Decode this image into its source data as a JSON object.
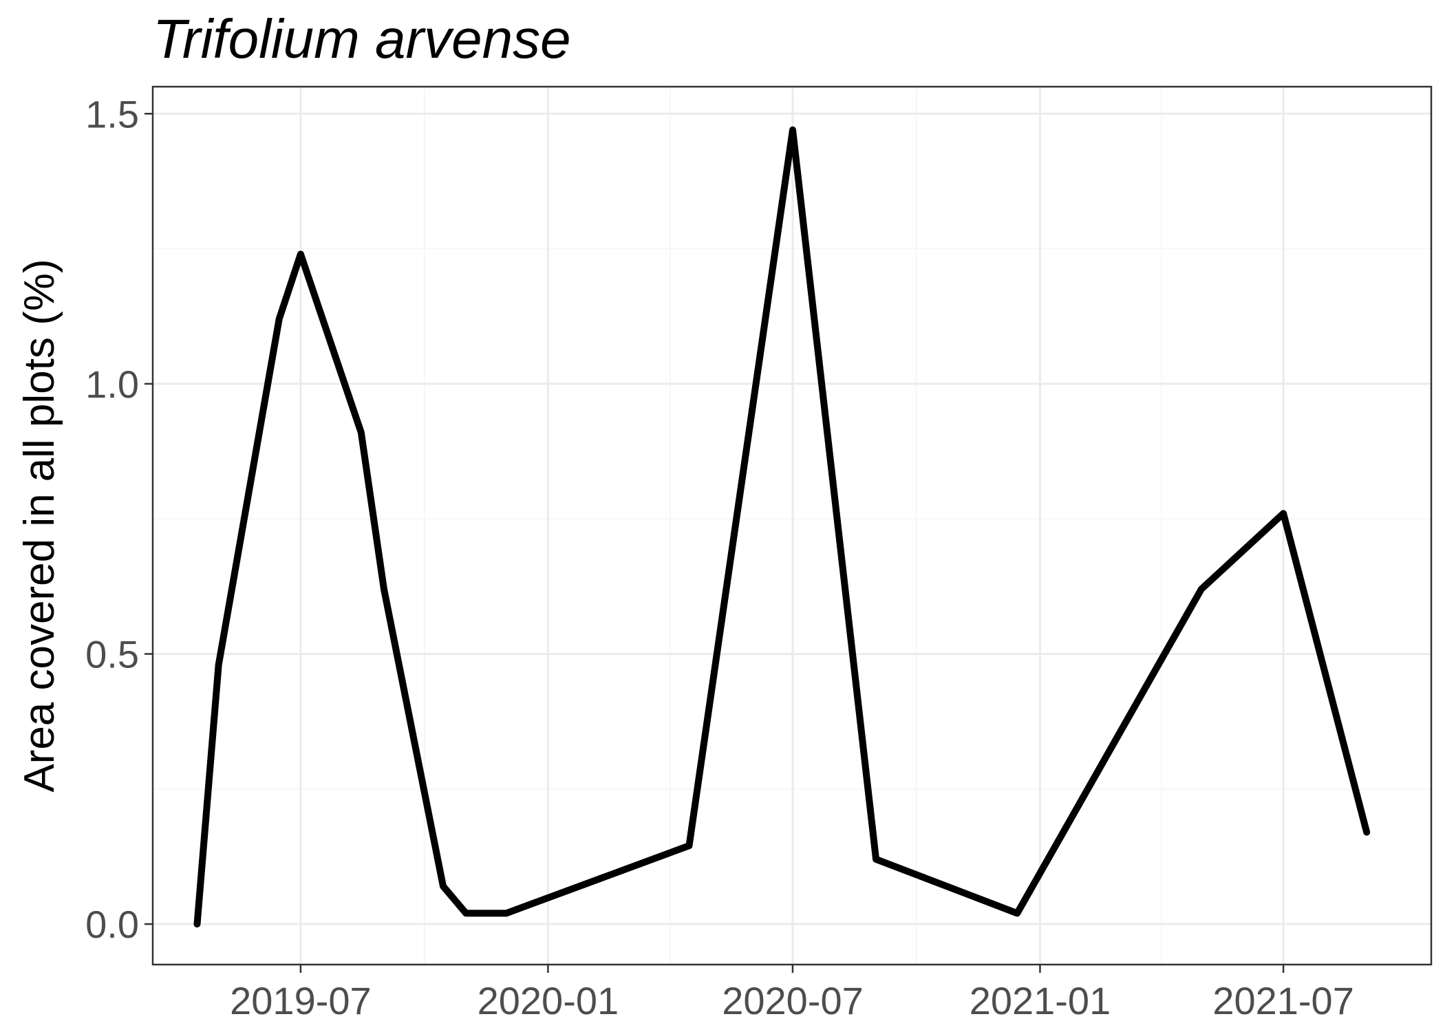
{
  "chart_data": {
    "type": "line",
    "title": "Trifolium arvense",
    "xlabel": "",
    "ylabel": "Area covered in all plots (%)",
    "x_ticks": [
      "2019-07-01",
      "2020-01-01",
      "2020-07-01",
      "2021-01-01",
      "2021-07-01"
    ],
    "x_tick_labels": [
      "2019-07",
      "2020-01",
      "2020-07",
      "2021-01",
      "2021-07"
    ],
    "y_ticks": [
      0.0,
      0.5,
      1.0,
      1.5
    ],
    "y_tick_labels": [
      "0.0",
      "0.5",
      "1.0",
      "1.5"
    ],
    "xlim": [
      "2019-03-13",
      "2021-10-19"
    ],
    "ylim": [
      -0.075,
      1.55
    ],
    "grid": true,
    "series": [
      {
        "color": "#000000",
        "x": [
          "2019-04-15",
          "2019-05-01",
          "2019-06-15",
          "2019-07-01",
          "2019-08-15",
          "2019-09-01",
          "2019-10-15",
          "2019-11-01",
          "2019-12-01",
          "2020-04-15",
          "2020-07-01",
          "2020-09-01",
          "2020-12-15",
          "2021-05-01",
          "2021-07-01",
          "2021-09-01"
        ],
        "y": [
          0.0,
          0.48,
          1.12,
          1.24,
          0.91,
          0.62,
          0.07,
          0.02,
          0.02,
          0.145,
          1.47,
          0.12,
          0.02,
          0.62,
          0.76,
          0.17
        ]
      }
    ]
  }
}
